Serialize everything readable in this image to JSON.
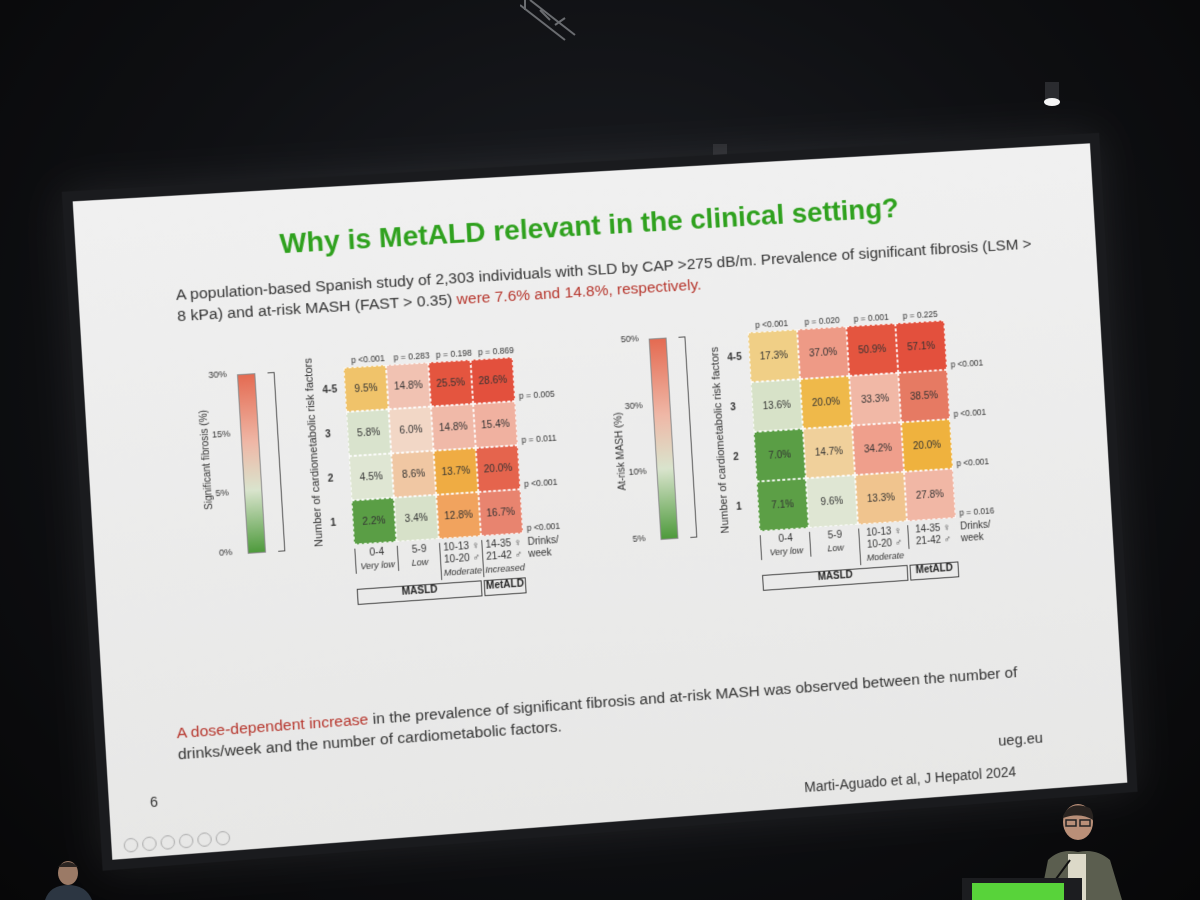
{
  "slide": {
    "title": "Why is MetALD relevant in the clinical setting?",
    "intro_black": "A population-based Spanish study of 2,303 individuals with SLD by CAP >275 dB/m. Prevalence of significant fibrosis (LSM > 8 kPa) and at-risk MASH (FAST > 0.35)",
    "intro_red": "were 7.6% and 14.8%, respectively.",
    "conclusion_red": "A dose-dependent increase",
    "conclusion_black": " in the prevalence of significant fibrosis and at-risk MASH was observed between the number of drinks/week and the number of cardiometabolic factors.",
    "page_number": "6",
    "site": "ueg.eu",
    "citation": "Marti-Aguado et al, J Hepatol 2024"
  },
  "colors": {
    "title_green": "#2fa11e",
    "highlight_red": "#b6352c",
    "heat_high": "#e4553f",
    "heat_low": "#4e9a3c"
  },
  "left_chart": {
    "legend_title": "Significant fibrosis (%)",
    "legend_ticks": [
      "30%",
      "15%",
      "5%",
      "0%"
    ],
    "axis_title": "Number of cardiometabolic risk factors",
    "rows": [
      "4-5",
      "3",
      "2",
      "1"
    ],
    "top_p": [
      "p <0.001",
      "p = 0.283",
      "p = 0.198",
      "p = 0.869"
    ],
    "right_p": [
      "p = 0.005",
      "p = 0.011",
      "p <0.001",
      "p <0.001"
    ],
    "cells": [
      [
        "9.5%",
        "14.8%",
        "25.5%",
        "28.6%"
      ],
      [
        "5.8%",
        "6.0%",
        "14.8%",
        "15.4%"
      ],
      [
        "4.5%",
        "8.6%",
        "13.7%",
        "20.0%"
      ],
      [
        "2.2%",
        "3.4%",
        "12.8%",
        "16.7%"
      ]
    ],
    "cell_colors": [
      [
        "#f0c36a",
        "#f1c2b2",
        "#e4553f",
        "#e3503d"
      ],
      [
        "#d9e3cd",
        "#f2d7c6",
        "#f0b9a8",
        "#f0b1a0"
      ],
      [
        "#dfe6d3",
        "#f0c7a3",
        "#efac43",
        "#e5644d"
      ],
      [
        "#5a9e45",
        "#d7e1c9",
        "#f1a35e",
        "#e8846f"
      ]
    ],
    "columns": [
      {
        "range": "0-4",
        "level": "Very low"
      },
      {
        "range": "5-9",
        "level": "Low"
      },
      {
        "range": "10-13 ♀\n10-20 ♂",
        "level": "Moderate"
      },
      {
        "range": "14-35 ♀\n21-42 ♂",
        "level": "Increased"
      }
    ],
    "drinks_label": "Drinks/\nweek",
    "group_masld": "MASLD",
    "group_metald": "MetALD"
  },
  "right_chart": {
    "legend_title": "At-risk MASH (%)",
    "legend_ticks": [
      "50%",
      "30%",
      "10%",
      "5%"
    ],
    "axis_title": "Number of cardiometabolic risk factors",
    "rows": [
      "4-5",
      "3",
      "2",
      "1"
    ],
    "top_p": [
      "p <0.001",
      "p = 0.020",
      "p = 0.001",
      "p = 0.225"
    ],
    "right_p": [
      "p <0.001",
      "p <0.001",
      "p <0.001",
      "p = 0.016"
    ],
    "cells": [
      [
        "17.3%",
        "37.0%",
        "50.9%",
        "57.1%"
      ],
      [
        "13.6%",
        "20.0%",
        "33.3%",
        "38.5%"
      ],
      [
        "7.0%",
        "14.7%",
        "34.2%",
        "20.0%"
      ],
      [
        "7.1%",
        "9.6%",
        "13.3%",
        "27.8%"
      ]
    ],
    "cell_colors": [
      [
        "#f0cf86",
        "#ee9a86",
        "#e4553f",
        "#e3503d"
      ],
      [
        "#d7e2c8",
        "#efb94a",
        "#f1b8a6",
        "#e67a63"
      ],
      [
        "#5a9e45",
        "#f0d09b",
        "#ef9f8c",
        "#efb23e"
      ],
      [
        "#5c9f46",
        "#dfe6d3",
        "#f0c48e",
        "#f1b7a5"
      ]
    ],
    "columns": [
      {
        "range": "0-4",
        "level": "Very low"
      },
      {
        "range": "5-9",
        "level": "Low"
      },
      {
        "range": "10-13 ♀\n10-20 ♂",
        "level": "Moderate"
      },
      {
        "range": "14-35 ♀\n21-42 ♂",
        "level": ""
      }
    ],
    "drinks_label": "Drinks/\nweek",
    "group_masld": "MASLD",
    "group_metald": "MetALD"
  }
}
